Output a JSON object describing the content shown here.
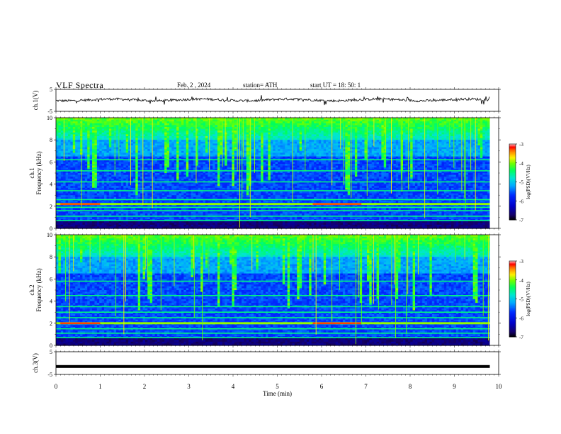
{
  "header": {
    "title": "VLF  Spectra",
    "date": "Feb. 2  , 2024",
    "station": "station= ATH",
    "start": "start  UT  =   18: 50: 1"
  },
  "chart_data": [
    {
      "type": "line",
      "panel": "ch1-waveform",
      "ylabel": "ch.1(V)",
      "ylim": [
        -5,
        5
      ],
      "yticks": [
        -5,
        5
      ],
      "xlim": [
        0,
        10
      ],
      "series": [
        {
          "baseline": 0.2
        }
      ]
    },
    {
      "type": "heatmap",
      "panel": "ch1-spectrogram",
      "ylabel": "ch.1\nFrequency  (kHz)",
      "ylim": [
        0,
        10
      ],
      "yticks": [
        0,
        2,
        4,
        6,
        8,
        10
      ],
      "xlim": [
        0,
        10
      ],
      "data_end_min": 9.8,
      "lines_khz": [
        0.7,
        1.1,
        1.6,
        1.9,
        2.2,
        2.6,
        3.4,
        4.2,
        5.2,
        6.2
      ],
      "strong_band_khz": 2.2,
      "colorbar": {
        "label": "log(PSD)(V²/Hz)",
        "range": [
          -7,
          -3
        ],
        "ticks": [
          -7,
          -6,
          -5,
          -4,
          -3
        ]
      }
    },
    {
      "type": "heatmap",
      "panel": "ch2-spectrogram",
      "ylabel": "ch.2\nFrequency  (kHz)",
      "ylim": [
        0,
        10
      ],
      "yticks": [
        0,
        2,
        4,
        6,
        8,
        10
      ],
      "xlim": [
        0,
        10
      ],
      "data_end_min": 9.8,
      "lines_khz": [
        0.7,
        1.1,
        1.5,
        2.0,
        2.5,
        3.0,
        3.5,
        4.5,
        5.8
      ],
      "strong_band_khz": 2.0,
      "colorbar": {
        "label": "log(PSD)(V²/Hz)",
        "range": [
          -7,
          -3
        ],
        "ticks": [
          -7,
          -6,
          -5,
          -4,
          -3
        ]
      }
    },
    {
      "type": "line",
      "panel": "ch3-waveform",
      "ylabel": "ch.3(V)",
      "ylim": [
        -5,
        5
      ],
      "yticks": [
        -5,
        5
      ],
      "xlim": [
        0,
        10
      ],
      "series": [
        {
          "baseline": -1.5
        }
      ]
    }
  ],
  "xaxis": {
    "label": "Time  (min)",
    "ticks": [
      0,
      1,
      2,
      3,
      4,
      5,
      6,
      7,
      8,
      9,
      10
    ]
  }
}
